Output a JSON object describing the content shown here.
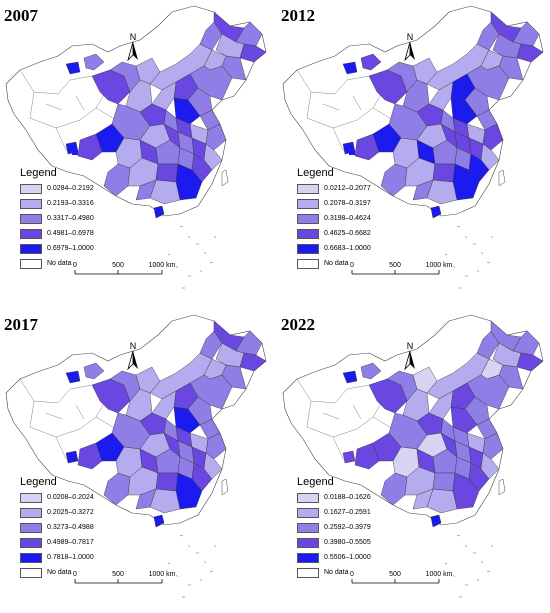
{
  "legend_title": "Legend",
  "no_data_label": "No data",
  "north_label": "N",
  "scale_labels": [
    "0",
    "500",
    "1000 km"
  ],
  "colors": [
    "#d6d3f3",
    "#b4acee",
    "#8f7ee6",
    "#6a47e0",
    "#1b1bf0"
  ],
  "panels": [
    {
      "year": "2007",
      "classes": [
        "0.0284–0.2192",
        "0.2193–0.3316",
        "0.3317–0.4980",
        "0.4981–0.6978",
        "0.6979–1.0000"
      ]
    },
    {
      "year": "2012",
      "classes": [
        "0.0212–0.2077",
        "0.2078–0.3197",
        "0.3198–0.4624",
        "0.4625–0.6682",
        "0.6683–1.0000"
      ]
    },
    {
      "year": "2017",
      "classes": [
        "0.0208–0.2024",
        "0.2025–0.3272",
        "0.3273–0.4988",
        "0.4989–0.7817",
        "0.7818–1.0000"
      ]
    },
    {
      "year": "2022",
      "classes": [
        "0.0188–0.1626",
        "0.1627–0.2591",
        "0.2592–0.3979",
        "0.3980–0.5505",
        "0.5506–1.0000"
      ]
    }
  ]
}
